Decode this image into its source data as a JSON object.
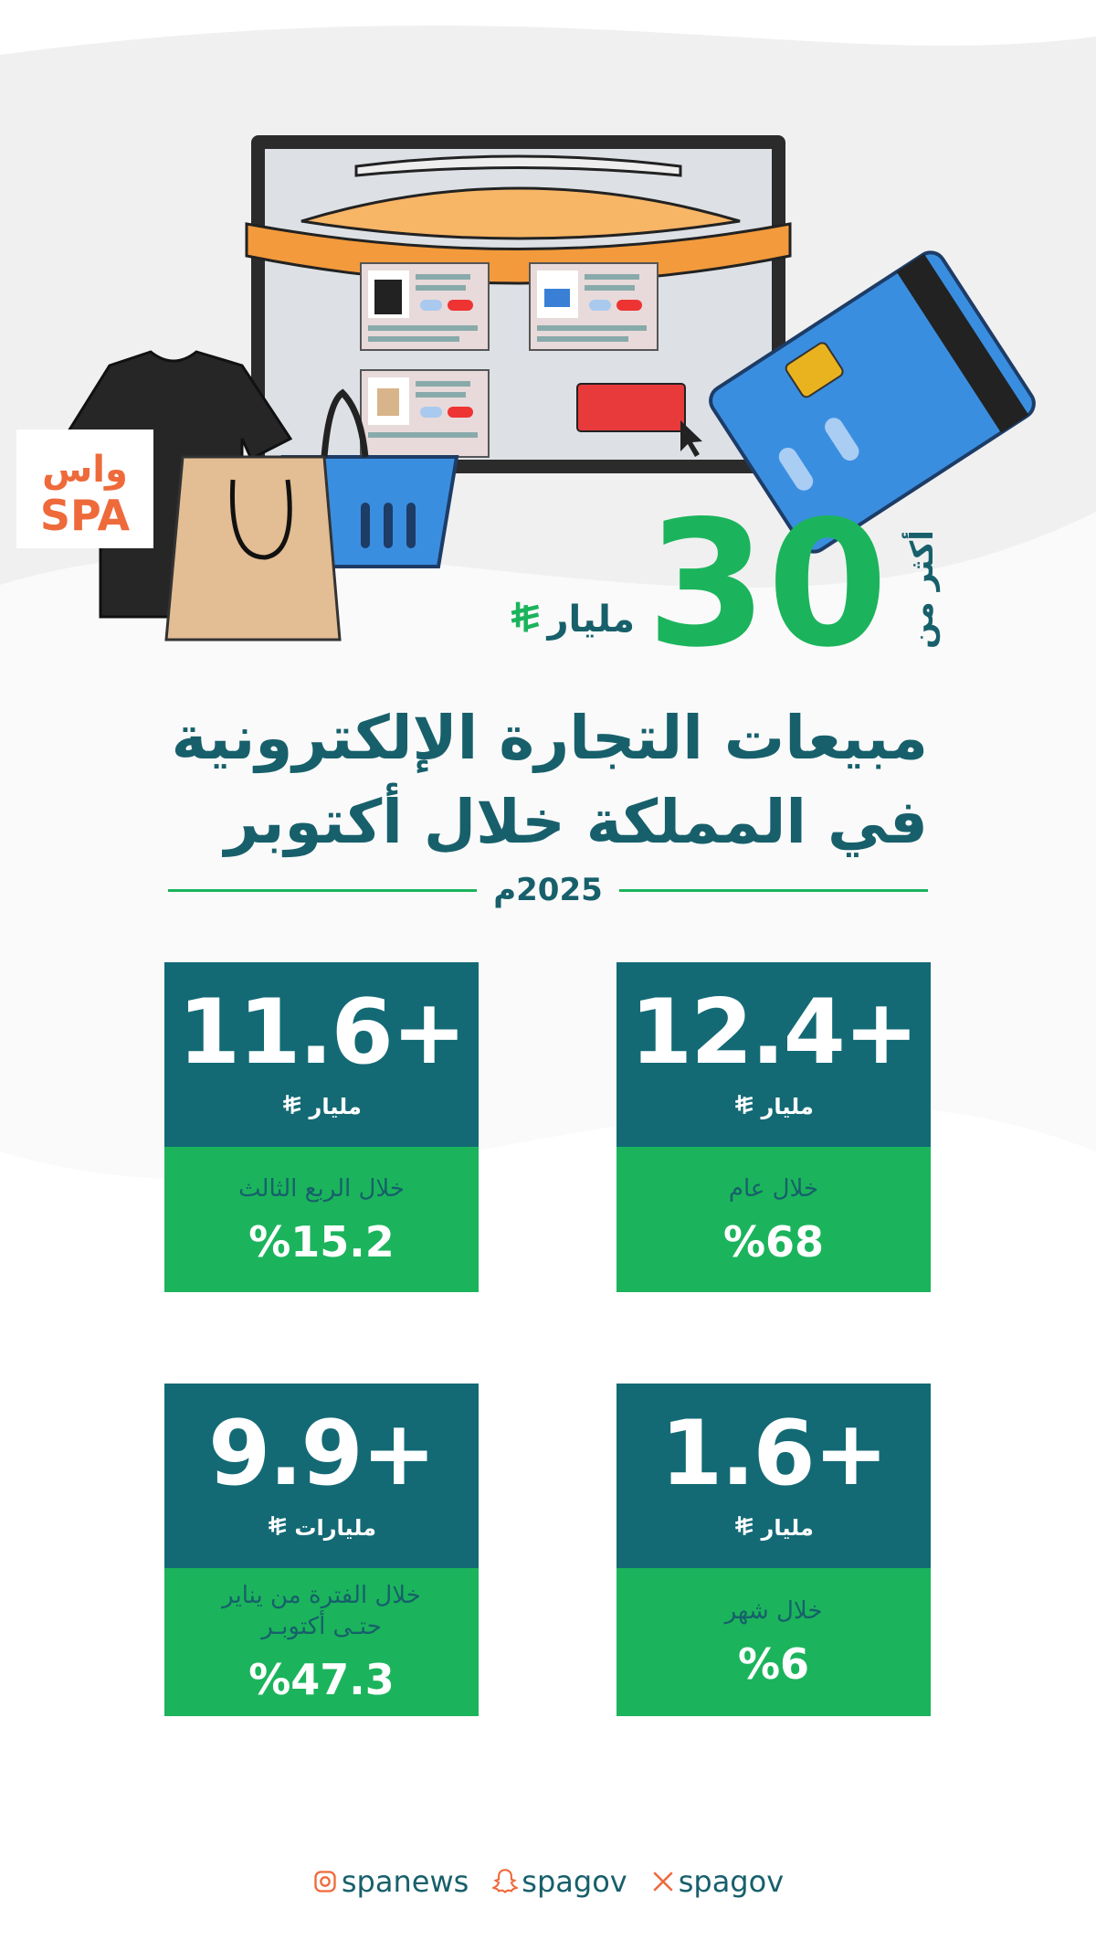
{
  "colors": {
    "teal": "#136a75",
    "green": "#1bb45c",
    "title": "#17606b",
    "orange": "#ee6a3b"
  },
  "logo": {
    "text_ar": "واس",
    "text_en": "SPA"
  },
  "hero": {
    "prefix": "أكثر من",
    "value": "30",
    "unit": "مليار",
    "currency_icon": "saudi-riyal-icon"
  },
  "title": {
    "line1": "مبيعات التجارة الإلكترونية",
    "line2": "في المملكة خلال أكتوبر",
    "date": "2025م"
  },
  "cards": [
    {
      "value": "12.4+",
      "unit": "مليار",
      "label": "خلال عام",
      "percent": "%68"
    },
    {
      "value": "11.6+",
      "unit": "مليار",
      "label": "خلال الربع الثالث",
      "percent": "%15.2"
    },
    {
      "value": "1.6+",
      "unit": "مليار",
      "label": "خلال شهر",
      "percent": "%6"
    },
    {
      "value": "9.9+",
      "unit": "مليارات",
      "label": "خلال الفترة من يناير حتـى أكتوبـر",
      "percent": "%47.3"
    }
  ],
  "footer": [
    {
      "icon": "instagram-icon",
      "handle": "spanews"
    },
    {
      "icon": "snapchat-icon",
      "handle": "spagov"
    },
    {
      "icon": "x-icon",
      "handle": "spagov"
    }
  ]
}
